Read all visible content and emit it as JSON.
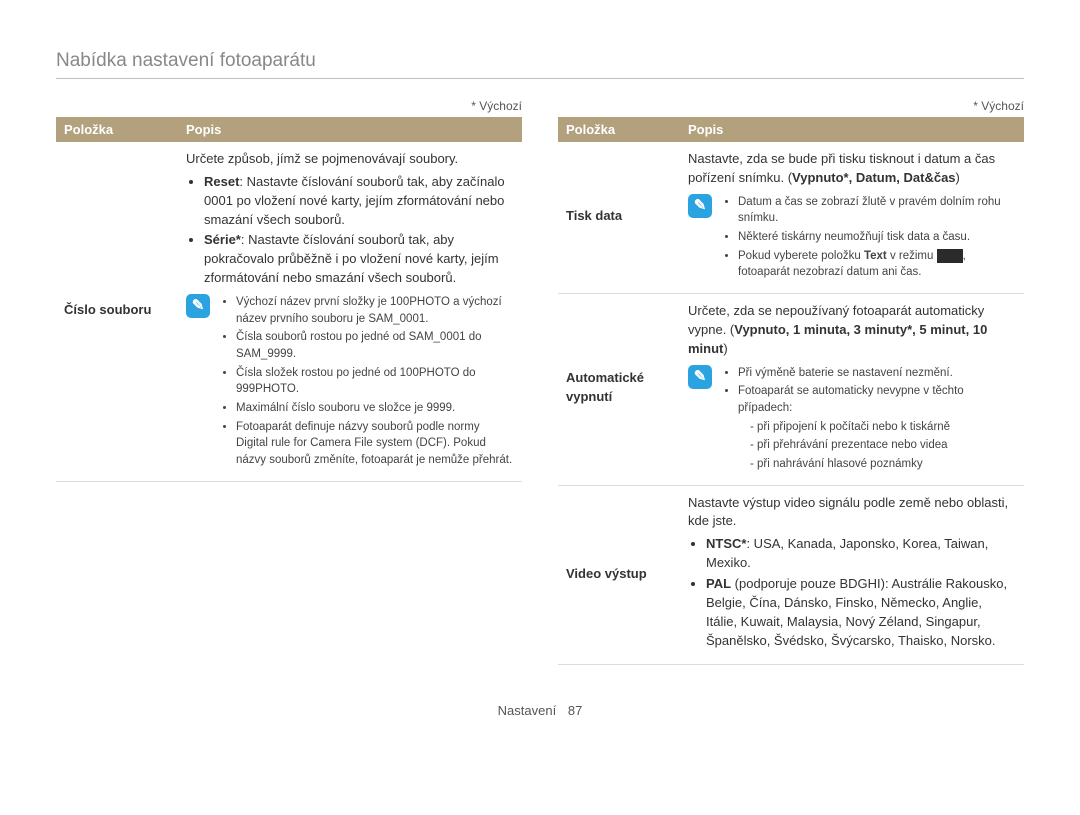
{
  "title": "Nabídka nastavení fotoaparátu",
  "default_note": "* Výchozí",
  "footer": {
    "section": "Nastavení",
    "page": "87"
  },
  "headers": {
    "item": "Položka",
    "desc": "Popis"
  },
  "note_icon_glyph": "✎",
  "left": {
    "row1": {
      "label": "Číslo souboru",
      "intro": "Určete způsob, jímž se pojmenovávají soubory.",
      "b1_label": "Reset",
      "b1_text": ": Nastavte číslování souborů tak, aby začínalo 0001 po vložení nové karty, jejím zformátování nebo smazání všech souborů.",
      "b2_label": "Série*",
      "b2_text": ": Nastavte číslování souborů tak, aby pokračovalo průběžně i po vložení nové karty, jejím zformátování nebo smazání všech souborů.",
      "note": {
        "n1": "Výchozí název první složky je 100PHOTO a výchozí název prvního souboru je SAM_0001.",
        "n2": "Čísla souborů rostou po jedné od SAM_0001 do SAM_9999.",
        "n3": "Čísla složek rostou po jedné od 100PHOTO do 999PHOTO.",
        "n4": "Maximální číslo souboru ve složce je 9999.",
        "n5": "Fotoaparát definuje názvy souborů podle normy Digital rule for Camera File system (DCF). Pokud názvy souborů změníte, fotoaparát je nemůže přehrát."
      }
    }
  },
  "right": {
    "row1": {
      "label": "Tisk data",
      "intro_a": "Nastavte, zda se bude při tisku tisknout i datum a čas pořízení snímku. (",
      "intro_b_bold": "Vypnuto*, Datum, Dat&čas",
      "intro_c": ")",
      "note": {
        "n1": "Datum a čas se zobrazí žlutě v pravém dolním rohu snímku.",
        "n2": "Některé tiskárny neumožňují tisk data a času.",
        "n3a": "Pokud vyberete položku ",
        "n3b_bold": "Text",
        "n3c": " v režimu ",
        "n3d": ", fotoaparát nezobrazí datum ani čas."
      }
    },
    "row2": {
      "label": "Automatické vypnutí",
      "intro_a": "Určete, zda se nepoužívaný fotoaparát automaticky vypne. (",
      "intro_b_bold": "Vypnuto, 1 minuta, 3 minuty*, 5 minut, 10 minut",
      "intro_c": ")",
      "note": {
        "n1": "Při výměně baterie se nastavení nezmění.",
        "n2": "Fotoaparát se automaticky nevypne v těchto případech:",
        "d1": "při připojení k počítači nebo k tiskárně",
        "d2": "při přehrávání prezentace nebo videa",
        "d3": "při nahrávání hlasové poznámky"
      }
    },
    "row3": {
      "label": "Video výstup",
      "intro": "Nastavte výstup video signálu podle země nebo oblasti, kde jste.",
      "b1_label": "NTSC*",
      "b1_text": ": USA, Kanada, Japonsko, Korea, Taiwan, Mexiko.",
      "b2_label": "PAL",
      "b2_text": " (podporuje pouze BDGHI): Austrálie Rakousko, Belgie, Čína, Dánsko, Finsko, Německo, Anglie, Itálie, Kuwait, Malaysia, Nový Zéland, Singapur, Španělsko, Švédsko, Švýcarsko, Thaisko, Norsko."
    }
  },
  "colors": {
    "header_bg": "#b3a17e",
    "header_fg": "#ffffff",
    "note_icon_bg": "#2aa3e0",
    "border": "#dcdcdc",
    "title_color": "#888888"
  }
}
